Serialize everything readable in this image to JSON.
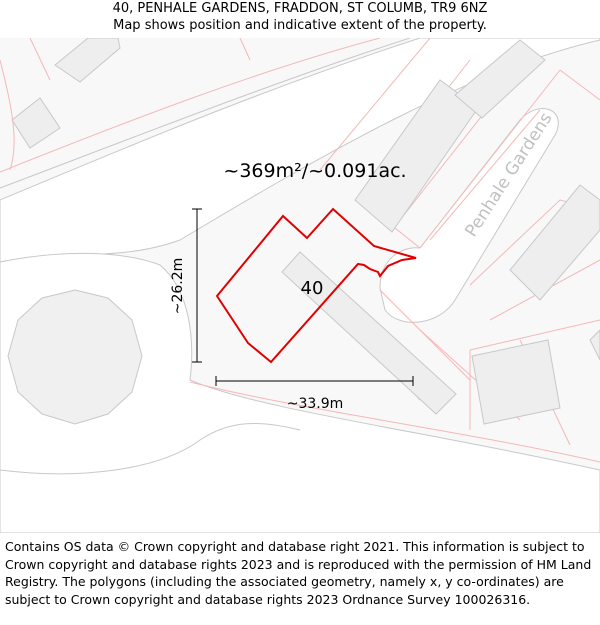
{
  "header": {
    "address": "40, PENHALE GARDENS, FRADDON, ST COLUMB, TR9 6NZ",
    "subtitle": "Map shows position and indicative extent of the property."
  },
  "map": {
    "area_label": "~369m²/~0.091ac.",
    "house_number": "40",
    "street_name": "Penhale Gardens",
    "height_dimension": "~26.2m",
    "width_dimension": "~33.9m",
    "colors": {
      "background": "#f8f8f8",
      "road_fill": "#ffffff",
      "road_outline": "#c8c8c8",
      "building_fill": "#eeeeee",
      "building_outline": "#c8c8c8",
      "parcel_line": "#f4b8b8",
      "property_outline": "#e00000",
      "dimension_line": "#000000"
    }
  },
  "footer": {
    "attribution": "Contains OS data © Crown copyright and database right 2021. This information is subject to Crown copyright and database rights 2023 and is reproduced with the permission of HM Land Registry. The polygons (including the associated geometry, namely x, y co-ordinates) are subject to Crown copyright and database rights 2023 Ordnance Survey 100026316."
  }
}
